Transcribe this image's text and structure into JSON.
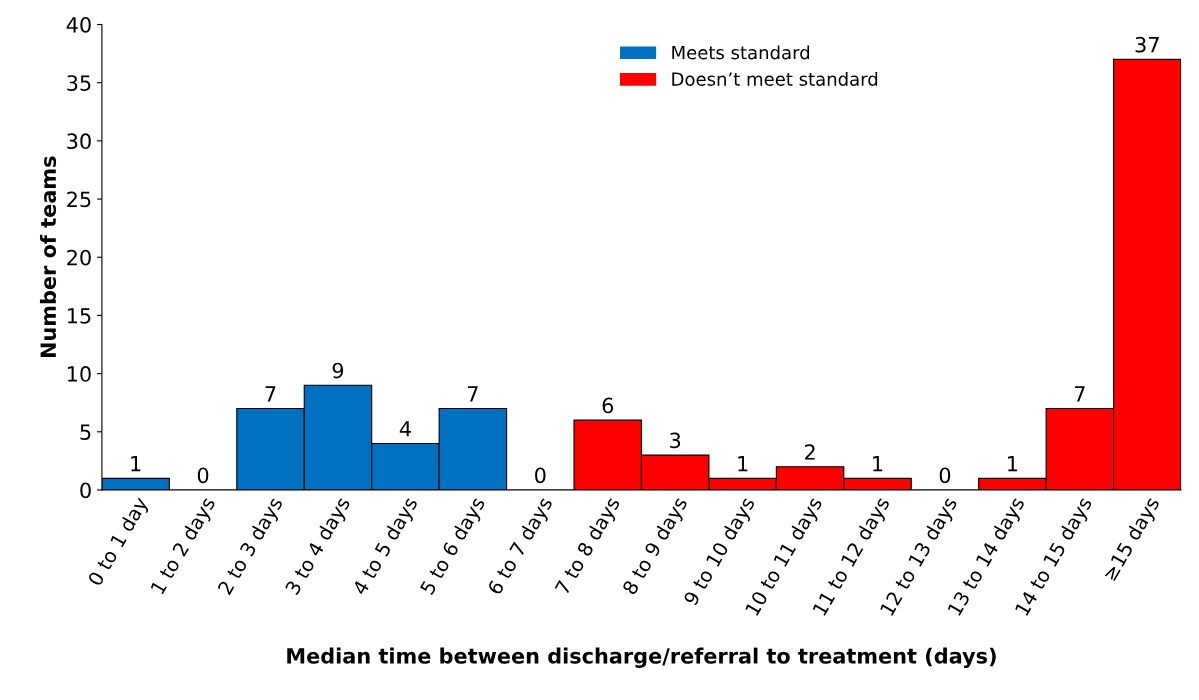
{
  "chart_data": {
    "type": "bar",
    "xlabel": "Median time between discharge/referral to treatment (days)",
    "ylabel": "Number of teams",
    "categories": [
      "0 to 1 day",
      "1 to 2 days",
      "2 to 3 days",
      "3 to 4 days",
      "4 to 5 days",
      "5 to 6 days",
      "6 to 7 days",
      "7 to 8 days",
      "8 to 9 days",
      "9 to 10 days",
      "10 to 11 days",
      "11 to 12 days",
      "12 to 13 days",
      "13 to 14 days",
      "14 to 15 days",
      "≥15 days"
    ],
    "series": [
      {
        "name": "Meets standard",
        "color": "#0070c0",
        "values": [
          1,
          0,
          7,
          9,
          4,
          7,
          0,
          null,
          null,
          null,
          null,
          null,
          null,
          null,
          null,
          null
        ]
      },
      {
        "name": "Doesn’t meet standard",
        "color": "#ff0000",
        "values": [
          null,
          null,
          null,
          null,
          null,
          null,
          null,
          6,
          3,
          1,
          2,
          1,
          0,
          1,
          7,
          37
        ]
      }
    ],
    "ylim": [
      0,
      40
    ],
    "yticks": [
      0,
      5,
      10,
      15,
      20,
      25,
      30,
      35,
      40
    ],
    "grid": false,
    "legend": "top",
    "data_labels": true
  }
}
